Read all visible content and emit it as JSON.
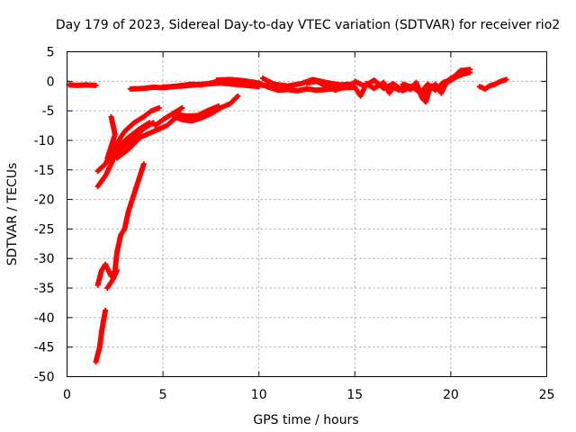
{
  "chart_data": {
    "type": "scatter",
    "title": "Day 179 of 2023, Sidereal Day-to-day VTEC variation (SDTVAR) for receiver rio2",
    "xlabel": "GPS time / hours",
    "ylabel": "SDTVAR / TECUs",
    "xlim": [
      0,
      25
    ],
    "ylim": [
      -50,
      5
    ],
    "xticks": [
      0,
      5,
      10,
      15,
      20,
      25
    ],
    "yticks": [
      5,
      0,
      -5,
      -10,
      -15,
      -20,
      -25,
      -30,
      -35,
      -40,
      -45,
      -50
    ],
    "grid": true,
    "marker": "plus",
    "color": "#ff0000",
    "segments": [
      {
        "points": [
          [
            0.1,
            -0.6
          ],
          [
            0.5,
            -0.7
          ],
          [
            1.0,
            -0.6
          ],
          [
            1.5,
            -0.7
          ]
        ]
      },
      {
        "points": [
          [
            1.6,
            -15.2
          ],
          [
            2.0,
            -14.0
          ],
          [
            2.5,
            -11.0
          ],
          [
            3.0,
            -8.5
          ],
          [
            3.5,
            -7.0
          ],
          [
            4.0,
            -6.0
          ],
          [
            4.4,
            -5.0
          ],
          [
            4.8,
            -4.5
          ]
        ]
      },
      {
        "points": [
          [
            1.6,
            -17.8
          ],
          [
            2.0,
            -16.0
          ],
          [
            2.3,
            -14.0
          ],
          [
            2.6,
            -11.5
          ],
          [
            2.8,
            -10.5
          ]
        ]
      },
      {
        "points": [
          [
            2.1,
            -13.0
          ],
          [
            2.5,
            -9.0
          ],
          [
            2.3,
            -6.0
          ]
        ]
      },
      {
        "points": [
          [
            2.5,
            -12.5
          ],
          [
            3.0,
            -11.0
          ],
          [
            3.5,
            -9.5
          ],
          [
            4.0,
            -8.0
          ],
          [
            4.5,
            -7.0
          ]
        ]
      },
      {
        "points": [
          [
            2.6,
            -13.0
          ],
          [
            3.2,
            -11.5
          ],
          [
            3.8,
            -9.5
          ],
          [
            4.5,
            -8.5
          ],
          [
            5.2,
            -7.5
          ],
          [
            5.9,
            -5.5
          ]
        ]
      },
      {
        "points": [
          [
            2.7,
            -11.0
          ],
          [
            3.2,
            -9.5
          ],
          [
            3.8,
            -8.0
          ],
          [
            4.3,
            -7.0
          ]
        ]
      },
      {
        "points": [
          [
            4.6,
            -7.5
          ],
          [
            5.0,
            -6.5
          ],
          [
            5.5,
            -5.5
          ],
          [
            6.0,
            -4.5
          ]
        ]
      },
      {
        "points": [
          [
            5.6,
            -6.0
          ],
          [
            6.0,
            -6.5
          ],
          [
            6.5,
            -6.7
          ],
          [
            7.0,
            -6.2
          ],
          [
            7.5,
            -5.5
          ],
          [
            8.0,
            -4.5
          ],
          [
            8.5,
            -3.8
          ],
          [
            8.9,
            -2.5
          ]
        ]
      },
      {
        "points": [
          [
            5.8,
            -5.7
          ],
          [
            6.3,
            -5.9
          ],
          [
            6.8,
            -5.8
          ],
          [
            7.3,
            -5.0
          ],
          [
            7.9,
            -4.2
          ]
        ]
      },
      {
        "points": [
          [
            1.6,
            -34.5
          ],
          [
            1.8,
            -32.0
          ],
          [
            2.0,
            -31.0
          ],
          [
            2.3,
            -33.0
          ],
          [
            2.5,
            -32.0
          ],
          [
            2.6,
            -29.0
          ],
          [
            2.8,
            -26.0
          ],
          [
            3.0,
            -25.0
          ],
          [
            3.2,
            -22.0
          ],
          [
            3.4,
            -20.0
          ],
          [
            3.7,
            -17.0
          ],
          [
            4.0,
            -14.0
          ]
        ]
      },
      {
        "points": [
          [
            2.1,
            -35.0
          ],
          [
            2.4,
            -33.5
          ],
          [
            2.6,
            -32.0
          ]
        ]
      },
      {
        "points": [
          [
            1.5,
            -47.5
          ],
          [
            1.7,
            -45.0
          ],
          [
            1.8,
            -42.5
          ],
          [
            1.9,
            -40.5
          ],
          [
            2.0,
            -38.8
          ]
        ]
      },
      {
        "points": [
          [
            3.3,
            -1.3
          ],
          [
            4.0,
            -1.2
          ],
          [
            4.5,
            -1.0
          ],
          [
            5.0,
            -1.1
          ],
          [
            5.5,
            -0.9
          ],
          [
            6.0,
            -0.7
          ],
          [
            6.5,
            -0.5
          ],
          [
            7.0,
            -0.6
          ],
          [
            7.5,
            -0.3
          ],
          [
            8.0,
            0.0
          ],
          [
            8.5,
            0.1
          ],
          [
            9.0,
            -0.1
          ],
          [
            9.5,
            -0.5
          ],
          [
            10.0,
            -0.6
          ],
          [
            10.5,
            -0.8
          ]
        ]
      },
      {
        "points": [
          [
            5.0,
            -1.0
          ],
          [
            6.0,
            -0.8
          ],
          [
            7.0,
            -0.5
          ],
          [
            8.0,
            -0.3
          ],
          [
            9.0,
            -0.6
          ],
          [
            10.0,
            -0.9
          ]
        ]
      },
      {
        "points": [
          [
            7.8,
            0.2
          ],
          [
            8.5,
            0.3
          ],
          [
            9.2,
            0.1
          ],
          [
            10.0,
            -0.3
          ],
          [
            10.5,
            -1.0
          ],
          [
            11.0,
            -1.5
          ],
          [
            11.5,
            -1.4
          ],
          [
            12.0,
            -1.6
          ],
          [
            12.5,
            -1.3
          ],
          [
            13.0,
            -1.5
          ],
          [
            13.5,
            -1.4
          ],
          [
            14.0,
            -1.2
          ],
          [
            14.5,
            -1.1
          ],
          [
            15.0,
            -1.0
          ]
        ]
      },
      {
        "points": [
          [
            10.2,
            0.5
          ],
          [
            10.8,
            -0.5
          ],
          [
            11.5,
            -0.8
          ],
          [
            12.2,
            -0.4
          ],
          [
            12.8,
            0.3
          ],
          [
            13.5,
            -0.2
          ],
          [
            14.2,
            -0.6
          ],
          [
            14.8,
            -0.5
          ]
        ]
      },
      {
        "points": [
          [
            12.5,
            -0.3
          ],
          [
            13.0,
            0.0
          ],
          [
            13.5,
            -0.8
          ],
          [
            14.0,
            -1.5
          ],
          [
            14.5,
            -0.8
          ],
          [
            15.0,
            -0.5
          ]
        ]
      },
      {
        "points": [
          [
            15.0,
            -1.0
          ],
          [
            15.3,
            -2.5
          ],
          [
            15.6,
            -0.4
          ],
          [
            16.0,
            -1.2
          ],
          [
            16.5,
            -0.2
          ],
          [
            16.8,
            -2.0
          ],
          [
            17.0,
            -1.0
          ],
          [
            17.3,
            -1.5
          ],
          [
            17.6,
            -0.6
          ],
          [
            17.9,
            -1.4
          ],
          [
            18.2,
            -0.2
          ],
          [
            18.5,
            -2.8
          ],
          [
            18.7,
            -3.5
          ],
          [
            18.9,
            -1.2
          ],
          [
            19.2,
            -0.5
          ],
          [
            19.5,
            -2.0
          ],
          [
            19.8,
            0.0
          ],
          [
            20.0,
            0.5
          ],
          [
            20.3,
            1.0
          ],
          [
            20.6,
            1.2
          ],
          [
            21.0,
            1.5
          ]
        ]
      },
      {
        "points": [
          [
            15.0,
            0.0
          ],
          [
            15.5,
            -0.8
          ],
          [
            16.0,
            0.2
          ],
          [
            16.5,
            -1.2
          ],
          [
            17.0,
            -0.4
          ],
          [
            17.5,
            -1.6
          ],
          [
            18.0,
            -0.8
          ],
          [
            18.4,
            -2.0
          ],
          [
            18.8,
            -0.5
          ],
          [
            19.2,
            -1.5
          ],
          [
            19.6,
            -0.2
          ],
          [
            20.0,
            0.2
          ],
          [
            20.5,
            1.8
          ],
          [
            21.0,
            2.0
          ]
        ]
      },
      {
        "points": [
          [
            17.5,
            -0.5
          ],
          [
            17.9,
            -0.9
          ],
          [
            18.3,
            -1.5
          ],
          [
            18.6,
            -2.2
          ],
          [
            19.0,
            -0.8
          ],
          [
            19.4,
            -1.0
          ],
          [
            19.8,
            -0.2
          ],
          [
            20.2,
            0.6
          ],
          [
            20.7,
            1.3
          ]
        ]
      },
      {
        "points": [
          [
            21.5,
            -0.9
          ],
          [
            21.8,
            -1.3
          ],
          [
            22.0,
            -0.8
          ],
          [
            22.3,
            -0.5
          ],
          [
            22.6,
            0.0
          ],
          [
            22.9,
            0.3
          ]
        ]
      }
    ]
  }
}
